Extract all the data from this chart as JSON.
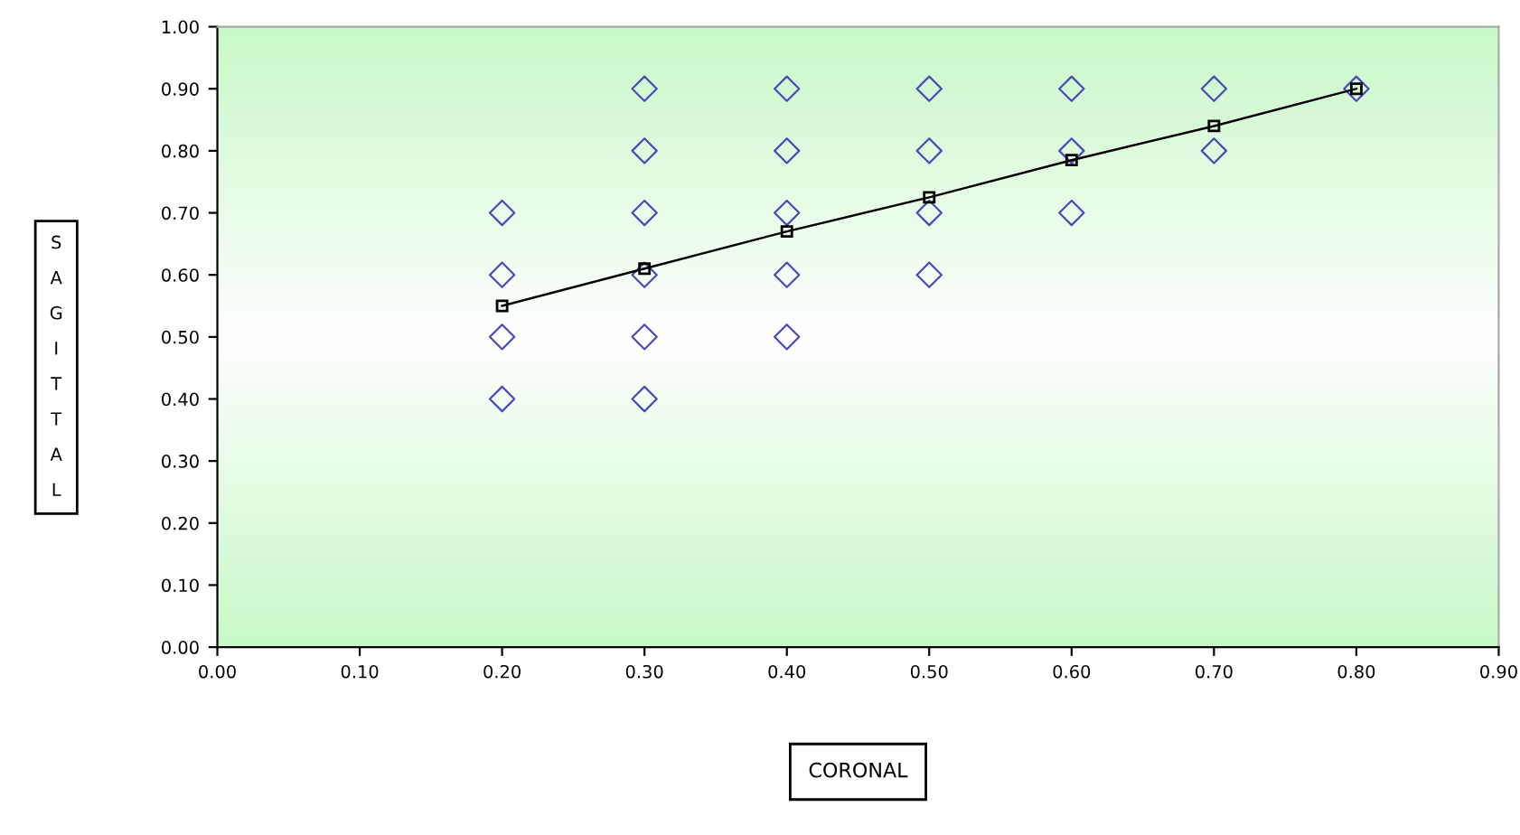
{
  "chart_data": {
    "type": "scatter",
    "xlabel": "CORONAL",
    "ylabel": "SAGITTAL",
    "series": [
      {
        "color": "#4a4ab8",
        "marker": "diamond",
        "x": [
          0.2,
          0.2,
          0.2,
          0.2,
          0.3,
          0.3,
          0.3,
          0.3,
          0.3,
          0.3,
          0.4,
          0.4,
          0.4,
          0.4,
          0.4,
          0.5,
          0.5,
          0.5,
          0.5,
          0.6,
          0.6,
          0.6,
          0.7,
          0.7,
          0.8
        ],
        "values": [
          0.4,
          0.5,
          0.6,
          0.7,
          0.4,
          0.5,
          0.6,
          0.7,
          0.8,
          0.9,
          0.5,
          0.6,
          0.7,
          0.8,
          0.9,
          0.6,
          0.7,
          0.8,
          0.9,
          0.7,
          0.8,
          0.9,
          0.8,
          0.9,
          0.9
        ]
      },
      {
        "type": "line",
        "color": "#000000",
        "marker": "square",
        "line_style": "solid",
        "x": [
          0.2,
          0.3,
          0.4,
          0.5,
          0.6,
          0.7,
          0.8
        ],
        "values": [
          0.55,
          0.61,
          0.67,
          0.725,
          0.785,
          0.84,
          0.9
        ]
      }
    ],
    "xlim": [
      0,
      0.9
    ],
    "ylim": [
      0,
      1
    ],
    "xticks": [
      {
        "value": 0,
        "label": "0.00"
      },
      {
        "value": 0.1,
        "label": "0.10"
      },
      {
        "value": 0.2,
        "label": "0.20"
      },
      {
        "value": 0.3,
        "label": "0.30"
      },
      {
        "value": 0.4,
        "label": "0.40"
      },
      {
        "value": 0.5,
        "label": "0.50"
      },
      {
        "value": 0.6,
        "label": "0.60"
      },
      {
        "value": 0.7,
        "label": "0.70"
      },
      {
        "value": 0.8,
        "label": "0.80"
      },
      {
        "value": 0.9,
        "label": "0.90"
      }
    ],
    "yticks": [
      {
        "value": 0,
        "label": "0.00"
      },
      {
        "value": 0.1,
        "label": "0.10"
      },
      {
        "value": 0.2,
        "label": "0.20"
      },
      {
        "value": 0.3,
        "label": "0.30"
      },
      {
        "value": 0.4,
        "label": "0.40"
      },
      {
        "value": 0.5,
        "label": "0.50"
      },
      {
        "value": 0.6,
        "label": "0.60"
      },
      {
        "value": 0.7,
        "label": "0.70"
      },
      {
        "value": 0.8,
        "label": "0.80"
      },
      {
        "value": 0.9,
        "label": "0.90"
      },
      {
        "value": 1,
        "label": "1.00"
      }
    ],
    "grid": false,
    "legend": false
  }
}
